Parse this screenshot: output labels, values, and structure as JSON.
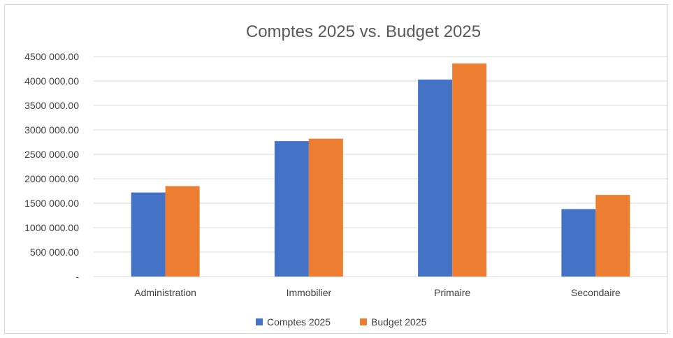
{
  "chart_data": {
    "type": "bar",
    "title": "Comptes 2025 vs. Budget 2025",
    "categories": [
      "Administration",
      "Immobilier",
      "Primaire",
      "Secondaire"
    ],
    "series": [
      {
        "name": "Comptes 2025",
        "color": "#4472c4",
        "values": [
          1720000,
          2770000,
          4030000,
          1380000
        ]
      },
      {
        "name": "Budget 2025",
        "color": "#ed7d31",
        "values": [
          1850000,
          2820000,
          4360000,
          1670000
        ]
      }
    ],
    "ylim": [
      0,
      4500000
    ],
    "yticks": [
      {
        "value": 0,
        "label": "-"
      },
      {
        "value": 500000,
        "label": "500 000.00"
      },
      {
        "value": 1000000,
        "label": "1000 000.00"
      },
      {
        "value": 1500000,
        "label": "1500 000.00"
      },
      {
        "value": 2000000,
        "label": "2000 000.00"
      },
      {
        "value": 2500000,
        "label": "2500 000.00"
      },
      {
        "value": 3000000,
        "label": "3000 000.00"
      },
      {
        "value": 3500000,
        "label": "3500 000.00"
      },
      {
        "value": 4000000,
        "label": "4000 000.00"
      },
      {
        "value": 4500000,
        "label": "4500 000.00"
      }
    ],
    "grid": true,
    "legend": "bottom"
  }
}
